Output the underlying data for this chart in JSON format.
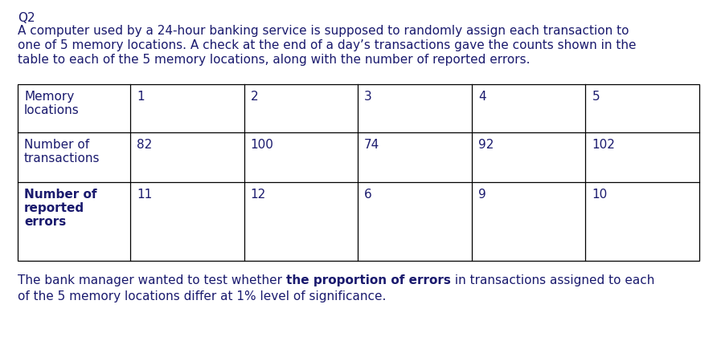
{
  "title_label": "Q2",
  "paragraph_lines": [
    "A computer used by a 24-hour banking service is supposed to randomly assign each transaction to",
    "one of 5 memory locations. A check at the end of a day’s transactions gave the counts shown in the",
    "table to each of the 5 memory locations, along with the number of reported errors."
  ],
  "row0_col0_lines": [
    "Memory",
    "locations"
  ],
  "row1_col0_lines": [
    "Number of",
    "transactions"
  ],
  "row2_col0_lines": [
    "Number of",
    "reported",
    "errors"
  ],
  "col_headers": [
    "1",
    "2",
    "3",
    "4",
    "5"
  ],
  "transactions": [
    "82",
    "100",
    "74",
    "92",
    "102"
  ],
  "errors": [
    "11",
    "12",
    "6",
    "9",
    "10"
  ],
  "footer_part1": "The bank manager wanted to test whether ",
  "footer_bold": "the proportion of errors",
  "footer_part2": " in transactions assigned to each",
  "footer_line2": "of the 5 memory locations differ at 1% level of significance.",
  "bg_color": "#ffffff",
  "text_color": "#1a1a6e",
  "font_size": 11.0,
  "table_font_size": 11.0
}
